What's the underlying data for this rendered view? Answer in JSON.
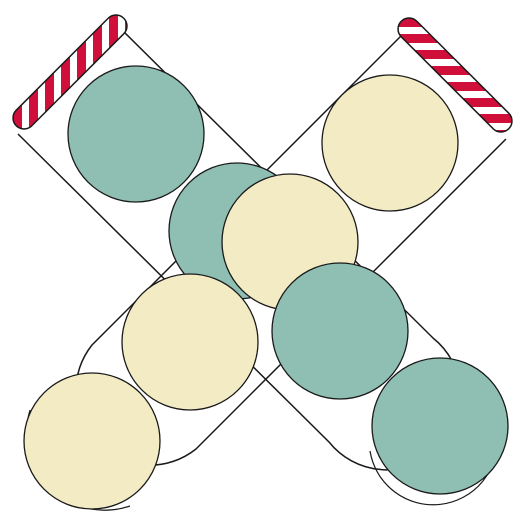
{
  "colors": {
    "background": "#ffffff",
    "outline": "#1a1a1a",
    "teal": "#8fbfb3",
    "cream": "#f2ebc4",
    "cap_red": "#d0103a",
    "cap_white": "#ffffff"
  },
  "tubes": [
    {
      "name": "tube-left-to-right",
      "cap": "top-left",
      "balls": [
        "teal",
        "teal",
        "teal",
        "teal"
      ]
    },
    {
      "name": "tube-right-to-left",
      "cap": "top-right",
      "balls": [
        "cream",
        "cream",
        "cream",
        "cream"
      ]
    }
  ]
}
